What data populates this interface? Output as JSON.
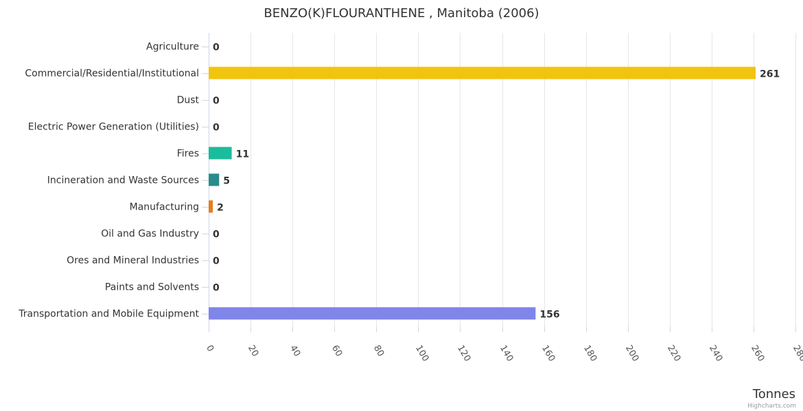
{
  "chart_data": {
    "type": "bar",
    "orientation": "horizontal",
    "title": "BENZO(K)FLOURANTHENE , Manitoba (2006)",
    "xlabel": "Tonnes",
    "categories": [
      "Agriculture",
      "Commercial/Residential/Institutional",
      "Dust",
      "Electric Power Generation (Utilities)",
      "Fires",
      "Incineration and Waste Sources",
      "Manufacturing",
      "Oil and Gas Industry",
      "Ores and Mineral Industries",
      "Paints and Solvents",
      "Transportation and Mobile Equipment"
    ],
    "values": [
      0,
      261,
      0,
      0,
      11,
      5,
      2,
      0,
      0,
      0,
      156
    ],
    "data_labels": [
      "0",
      "261",
      "0",
      "0",
      "11",
      "5",
      "2",
      "0",
      "0",
      "0",
      "156"
    ],
    "colors": [
      "#7cb5ec",
      "#f1c40f",
      "#2c3e50",
      "#8e44ad",
      "#1abc9c",
      "#2a8c8c",
      "#e67e22",
      "#5d6d7e",
      "#95a5a6",
      "#34495e",
      "#8085e9"
    ],
    "xlim": [
      0,
      280
    ],
    "ticks": [
      0,
      20,
      40,
      60,
      80,
      100,
      120,
      140,
      160,
      180,
      200,
      220,
      240,
      260,
      280
    ],
    "grid": true,
    "legend": "none"
  },
  "credits": "Highcharts.com"
}
